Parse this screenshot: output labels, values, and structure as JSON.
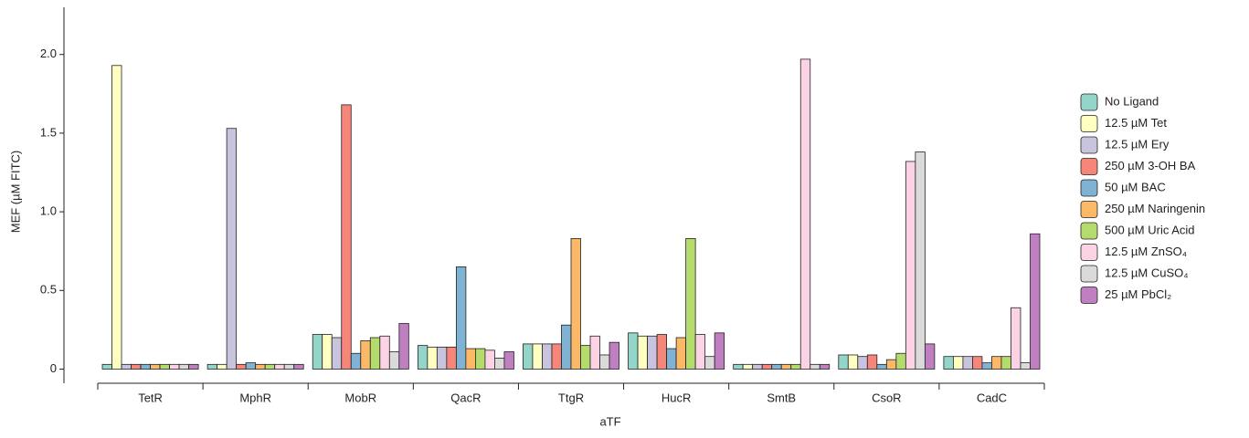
{
  "chart_data": {
    "type": "bar",
    "x_label": "aTF",
    "y_label": "MEF (µM FITC)",
    "categories": [
      "TetR",
      "MphR",
      "MobR",
      "QacR",
      "TtgR",
      "HucR",
      "SmtB",
      "CsoR",
      "CadC"
    ],
    "series": [
      {
        "name": "No Ligand",
        "color": "#93d5c8",
        "values": [
          0.03,
          0.03,
          0.22,
          0.15,
          0.16,
          0.23,
          0.03,
          0.09,
          0.08
        ]
      },
      {
        "name": "12.5 µM Tet",
        "color": "#ffffc2",
        "values": [
          1.93,
          0.03,
          0.22,
          0.14,
          0.16,
          0.21,
          0.03,
          0.09,
          0.08
        ]
      },
      {
        "name": "12.5 µM Ery",
        "color": "#c8c4de",
        "values": [
          0.03,
          1.53,
          0.2,
          0.14,
          0.16,
          0.21,
          0.03,
          0.08,
          0.08
        ]
      },
      {
        "name": "250 µM 3-OH BA",
        "color": "#f6867a",
        "values": [
          0.03,
          0.03,
          1.68,
          0.14,
          0.16,
          0.22,
          0.03,
          0.09,
          0.08
        ]
      },
      {
        "name": "50 µM BAC",
        "color": "#80b2d4",
        "values": [
          0.03,
          0.04,
          0.1,
          0.65,
          0.28,
          0.13,
          0.03,
          0.03,
          0.04
        ]
      },
      {
        "name": "250 µM Naringenin",
        "color": "#fbb867",
        "values": [
          0.03,
          0.03,
          0.18,
          0.13,
          0.83,
          0.2,
          0.03,
          0.06,
          0.08
        ]
      },
      {
        "name": "500 µM Uric Acid",
        "color": "#b3dc6c",
        "values": [
          0.03,
          0.03,
          0.2,
          0.13,
          0.15,
          0.83,
          0.03,
          0.1,
          0.08
        ]
      },
      {
        "name": "12.5 µM ZnSO₄",
        "color": "#fcd2e5",
        "values": [
          0.03,
          0.03,
          0.21,
          0.12,
          0.21,
          0.22,
          1.97,
          1.32,
          0.39
        ]
      },
      {
        "name": "12.5 µM CuSO₄",
        "color": "#dadada",
        "values": [
          0.03,
          0.03,
          0.11,
          0.07,
          0.09,
          0.08,
          0.03,
          1.38,
          0.04
        ]
      },
      {
        "name": "25 µM PbCl₂",
        "color": "#c07fc1",
        "values": [
          0.03,
          0.03,
          0.29,
          0.11,
          0.17,
          0.23,
          0.03,
          0.16,
          0.86
        ]
      }
    ],
    "ylim": [
      -0.09,
      2.3
    ],
    "yticks": [
      0,
      0.5,
      {
        "value": 1,
        "label": "1.0"
      },
      1.5,
      {
        "value": 2,
        "label": "2.0"
      }
    ],
    "legend": "right"
  }
}
